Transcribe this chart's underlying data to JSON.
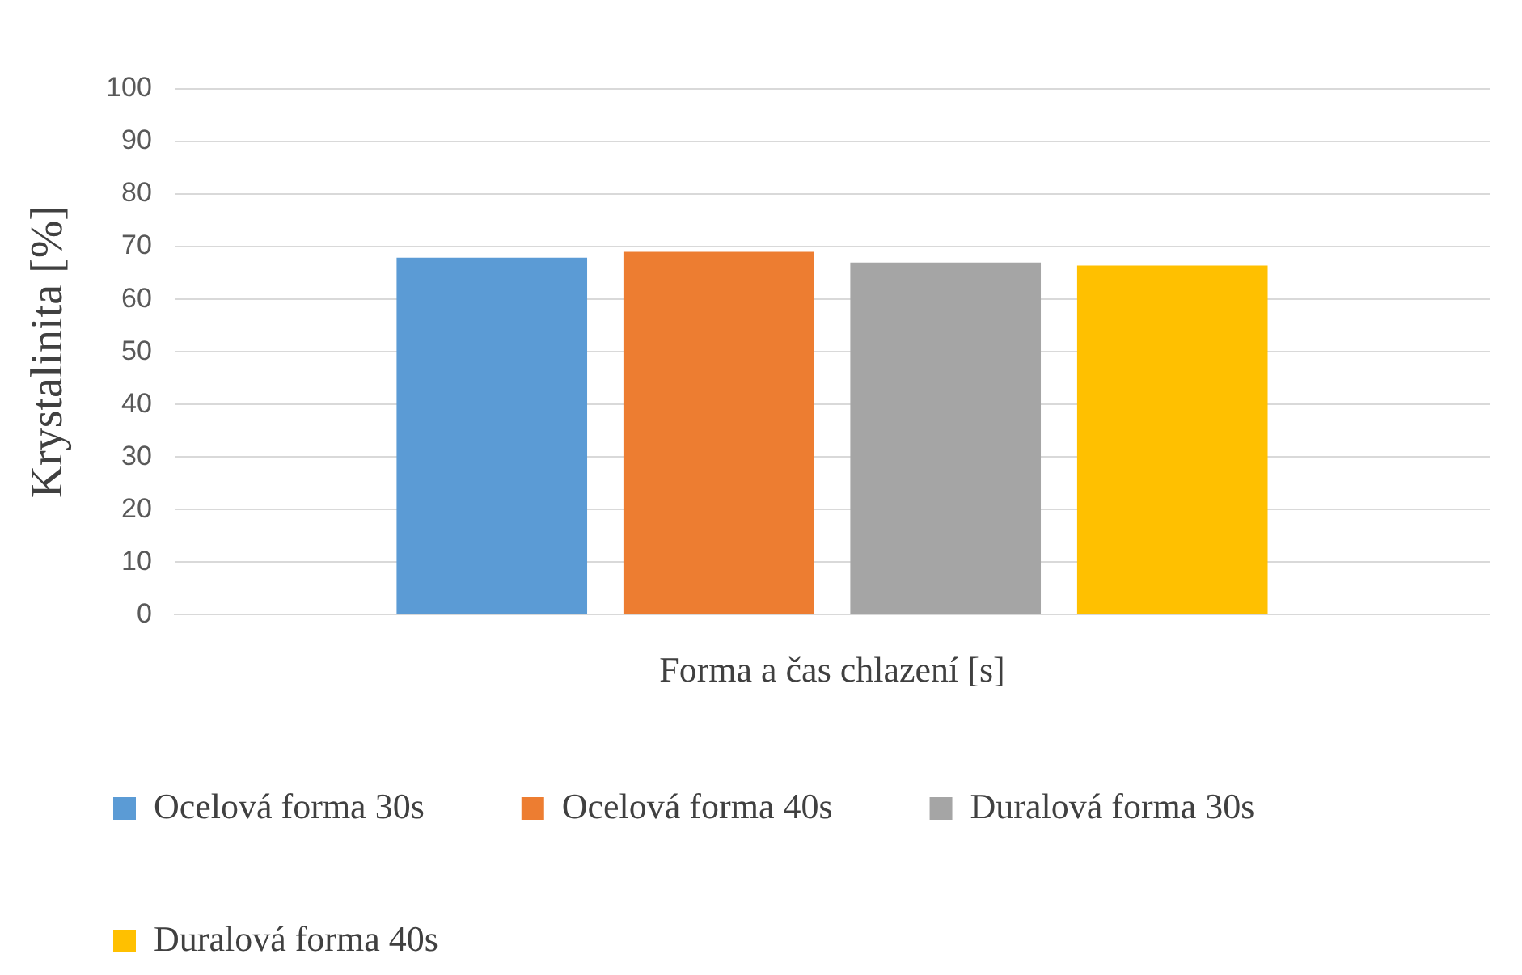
{
  "chart_data": {
    "type": "bar",
    "xlabel": "Forma a čas chlazení [s]",
    "ylabel": "Krystalinita [%]",
    "categories": [
      null
    ],
    "series": [
      {
        "name": "Ocelová forma 30s",
        "color": "#5b9bd5",
        "values": [
          67.9
        ]
      },
      {
        "name": "Ocelová forma 40s",
        "color": "#ed7d31",
        "values": [
          69
        ]
      },
      {
        "name": "Duralová forma 30s",
        "color": "#a5a5a5",
        "values": [
          67
        ]
      },
      {
        "name": "Duralová forma 40s",
        "color": "#ffc000",
        "values": [
          66.4
        ]
      }
    ],
    "ylim": [
      0,
      100
    ],
    "yticks": [
      0,
      10,
      20,
      30,
      40,
      50,
      60,
      70,
      80,
      90,
      100
    ],
    "grid": "y",
    "legend": "bottom"
  }
}
